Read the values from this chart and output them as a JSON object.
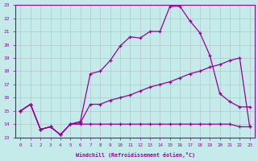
{
  "xlabel": "Windchill (Refroidissement éolien,°C)",
  "xlim": [
    -0.5,
    23.5
  ],
  "ylim": [
    13,
    23
  ],
  "yticks": [
    13,
    14,
    15,
    16,
    17,
    18,
    19,
    20,
    21,
    22,
    23
  ],
  "xticks": [
    0,
    1,
    2,
    3,
    4,
    5,
    6,
    7,
    8,
    9,
    10,
    11,
    12,
    13,
    14,
    15,
    16,
    17,
    18,
    19,
    20,
    21,
    22,
    23
  ],
  "bg_color": "#c5eaea",
  "line_color": "#990099",
  "grid_color": "#b0c8c8",
  "lines": [
    {
      "x": [
        0,
        1,
        2,
        3,
        4,
        5,
        6,
        7,
        8,
        9,
        10,
        11,
        12,
        13,
        14,
        15,
        16,
        17,
        18,
        19,
        20,
        21,
        22,
        23
      ],
      "y": [
        15.0,
        15.5,
        13.6,
        13.8,
        13.2,
        14.0,
        14.2,
        17.8,
        18.0,
        18.8,
        19.9,
        20.6,
        20.5,
        21.0,
        21.0,
        22.9,
        22.9,
        21.8,
        20.9,
        19.2,
        16.3,
        15.7,
        15.3,
        15.3
      ]
    },
    {
      "x": [
        0,
        1,
        2,
        3,
        4,
        5,
        6,
        7,
        8,
        9,
        10,
        11,
        12,
        13,
        14,
        15,
        16,
        17,
        18,
        19,
        20,
        21,
        22,
        23
      ],
      "y": [
        15.0,
        15.5,
        13.6,
        13.8,
        13.2,
        14.0,
        14.1,
        15.5,
        15.5,
        15.8,
        16.0,
        16.2,
        16.5,
        16.8,
        17.0,
        17.2,
        17.5,
        17.8,
        18.0,
        18.3,
        18.5,
        18.8,
        19.0,
        13.8
      ]
    },
    {
      "x": [
        0,
        1,
        2,
        3,
        4,
        5,
        6,
        7,
        8,
        9,
        10,
        11,
        12,
        13,
        14,
        15,
        16,
        17,
        18,
        19,
        20,
        21,
        22,
        23
      ],
      "y": [
        15.0,
        15.5,
        13.6,
        13.8,
        13.2,
        14.0,
        14.0,
        14.0,
        14.0,
        14.0,
        14.0,
        14.0,
        14.0,
        14.0,
        14.0,
        14.0,
        14.0,
        14.0,
        14.0,
        14.0,
        14.0,
        14.0,
        13.8,
        13.8
      ]
    }
  ]
}
